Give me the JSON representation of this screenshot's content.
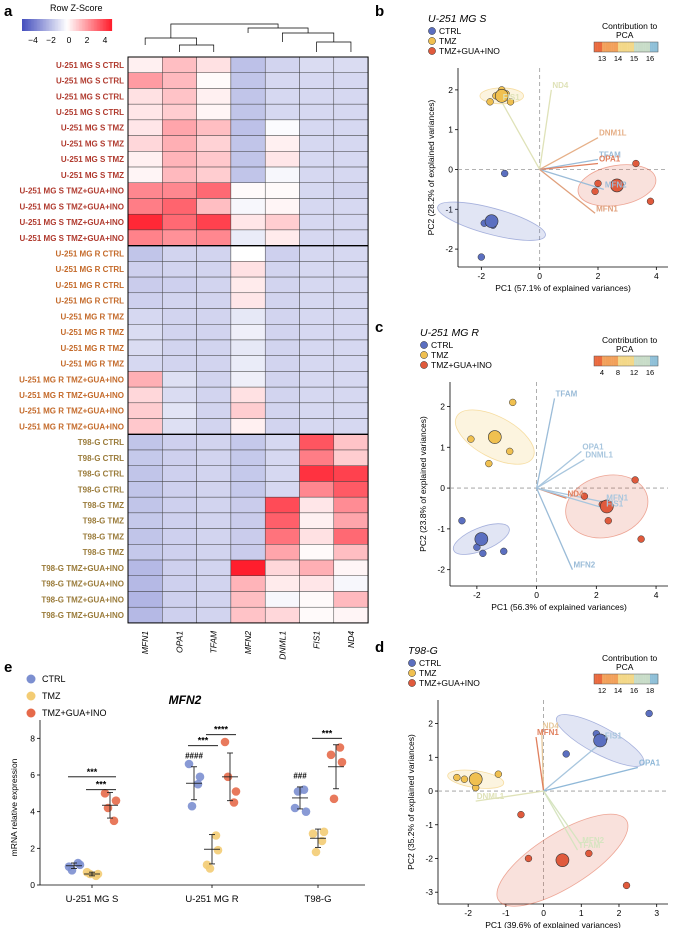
{
  "panels": {
    "a": "a",
    "b": "b",
    "c": "c",
    "d": "d",
    "e": "e"
  },
  "chart_data": [
    {
      "type": "heatmap",
      "panel": "a",
      "legend_title": "Row Z-Score",
      "legend_ticks": [
        "−4",
        "−2",
        "0",
        "2",
        "4"
      ],
      "columns": [
        "MFN1",
        "OPA1",
        "TFAM",
        "MFN2",
        "DNML1",
        "FIS1",
        "ND4"
      ],
      "rows": [
        "U-251 MG S CTRL",
        "U-251 MG S CTRL",
        "U-251 MG S CTRL",
        "U-251 MG S CTRL",
        "U-251 MG S TMZ",
        "U-251 MG S TMZ",
        "U-251 MG S TMZ",
        "U-251 MG S TMZ",
        "U-251 MG S TMZ+GUA+INO",
        "U-251 MG S TMZ+GUA+INO",
        "U-251 MG S TMZ+GUA+INO",
        "U-251 MG S TMZ+GUA+INO",
        "U-251 MG R CTRL",
        "U-251 MG R CTRL",
        "U-251 MG R CTRL",
        "U-251 MG R CTRL",
        "U-251 MG R TMZ",
        "U-251 MG R TMZ",
        "U-251 MG R TMZ",
        "U-251 MG R TMZ",
        "U-251 MG R TMZ+GUA+INO",
        "U-251 MG R TMZ+GUA+INO",
        "U-251 MG R TMZ+GUA+INO",
        "U-251 MG R TMZ+GUA+INO",
        "T98-G CTRL",
        "T98-G CTRL",
        "T98-G CTRL",
        "T98-G CTRL",
        "T98-G TMZ",
        "T98-G TMZ",
        "T98-G TMZ",
        "T98-G TMZ",
        "T98-G TMZ+GUA+INO",
        "T98-G TMZ+GUA+INO",
        "T98-G TMZ+GUA+INO",
        "T98-G TMZ+GUA+INO"
      ],
      "row_colors": [
        "#b03a2e",
        "#c46a2a",
        "#9a7b3a"
      ],
      "values": [
        [
          0.3,
          1.3,
          0.6,
          -1.6,
          -1.1,
          -0.9,
          -0.9
        ],
        [
          2.0,
          1.4,
          0.1,
          -1.5,
          -1.0,
          -1.0,
          -1.0
        ],
        [
          0.6,
          1.2,
          0.3,
          -1.5,
          -1.0,
          -1.0,
          -1.0
        ],
        [
          0.5,
          1.0,
          0.2,
          -1.5,
          -1.0,
          -1.0,
          -1.0
        ],
        [
          0.5,
          1.8,
          1.3,
          -1.6,
          -0.1,
          -1.0,
          -1.0
        ],
        [
          0.8,
          1.6,
          0.9,
          -1.5,
          0.3,
          -1.0,
          -1.0
        ],
        [
          0.3,
          1.5,
          1.1,
          -1.5,
          0.5,
          -1.0,
          -1.0
        ],
        [
          0.2,
          1.4,
          1.0,
          -1.5,
          -0.2,
          -1.0,
          -1.0
        ],
        [
          2.4,
          2.4,
          3.0,
          0.1,
          0.1,
          -1.0,
          -1.1
        ],
        [
          2.6,
          3.1,
          1.3,
          -0.2,
          0.2,
          -1.0,
          -1.0
        ],
        [
          4.3,
          3.0,
          3.8,
          0.5,
          1.0,
          -1.0,
          -1.0
        ],
        [
          2.5,
          2.2,
          2.4,
          -0.5,
          0.4,
          -1.0,
          -1.0
        ],
        [
          -1.5,
          -1.1,
          -1.1,
          0.0,
          -1.2,
          -1.0,
          -1.0
        ],
        [
          -1.2,
          -1.1,
          -1.1,
          0.6,
          -1.1,
          -1.0,
          -1.0
        ],
        [
          -1.3,
          -1.2,
          -1.1,
          0.4,
          -1.1,
          -1.0,
          -1.0
        ],
        [
          -1.2,
          -1.1,
          -1.1,
          0.5,
          -1.1,
          -1.0,
          -1.0
        ],
        [
          -1.0,
          -1.1,
          -1.1,
          -0.6,
          -1.1,
          -1.0,
          -1.0
        ],
        [
          -0.9,
          -1.1,
          -1.1,
          -0.4,
          -1.1,
          -1.0,
          -1.0
        ],
        [
          -0.9,
          -1.1,
          -1.1,
          -0.6,
          -1.1,
          -1.0,
          -1.0
        ],
        [
          -1.0,
          -1.1,
          -1.1,
          -0.5,
          -1.1,
          -1.0,
          -1.0
        ],
        [
          1.6,
          -0.8,
          -1.1,
          -0.4,
          -1.1,
          -1.0,
          -1.0
        ],
        [
          0.8,
          -0.9,
          -1.1,
          0.6,
          -1.1,
          -1.0,
          -1.0
        ],
        [
          1.0,
          -0.7,
          -1.1,
          1.0,
          -1.1,
          -1.0,
          -1.0
        ],
        [
          1.1,
          -0.8,
          -1.1,
          0.3,
          -1.1,
          -1.0,
          -1.0
        ],
        [
          -1.5,
          -1.2,
          -1.1,
          -1.4,
          -1.0,
          3.4,
          1.2
        ],
        [
          -1.4,
          -1.2,
          -1.1,
          -1.4,
          -1.0,
          2.6,
          1.0
        ],
        [
          -1.5,
          -1.2,
          -1.1,
          -1.4,
          -1.0,
          4.1,
          3.8
        ],
        [
          -1.5,
          -1.2,
          -1.1,
          -1.4,
          -1.0,
          2.4,
          3.3
        ],
        [
          -1.5,
          -1.2,
          -1.1,
          -1.3,
          3.6,
          0.5,
          2.3
        ],
        [
          -1.4,
          -1.2,
          -1.1,
          -1.3,
          3.2,
          0.3,
          1.8
        ],
        [
          -1.5,
          -1.2,
          -1.1,
          -1.3,
          2.8,
          0.6,
          3.0
        ],
        [
          -1.4,
          -1.2,
          -1.1,
          -1.3,
          1.8,
          0.1,
          1.3
        ],
        [
          -1.8,
          -1.2,
          -1.1,
          4.6,
          0.8,
          1.6,
          0.2
        ],
        [
          -1.8,
          -1.2,
          -1.1,
          1.5,
          0.4,
          0.5,
          -0.2
        ],
        [
          -1.9,
          -1.2,
          -1.1,
          1.3,
          -0.2,
          0.1,
          1.4
        ],
        [
          -1.8,
          -1.2,
          -1.1,
          1.2,
          0.8,
          0.1,
          0.2
        ]
      ]
    },
    {
      "type": "scatter",
      "panel": "b",
      "title": "U-251 MG S",
      "xlabel": "PC1 (57.1% of explained variances)",
      "ylabel": "PC2 (28.2% of explained variances)",
      "xlim": [
        -2.8,
        4.4
      ],
      "ylim": [
        -2.45,
        2.55
      ],
      "xticks": [
        -2,
        0,
        2,
        4
      ],
      "yticks": [
        -2,
        -1,
        0,
        1,
        2
      ],
      "legend": [
        "CTRL",
        "TMZ",
        "TMZ+GUA+INO"
      ],
      "colorbar": {
        "title": "Contribution to PCA",
        "ticks": [
          "13",
          "14",
          "15",
          "16"
        ]
      },
      "groups": [
        {
          "name": "CTRL",
          "color": "#5b6fc0",
          "points": [
            [
              -1.2,
              -0.1
            ],
            [
              -1.6,
              -1.4
            ],
            [
              -1.9,
              -1.35
            ],
            [
              -2.0,
              -2.2
            ]
          ],
          "centroid": [
            -1.65,
            -1.3
          ],
          "ellipse": {
            "rx": 0.45,
            "ry": 1.4,
            "angle": -75
          }
        },
        {
          "name": "TMZ",
          "color": "#f0c050",
          "points": [
            [
              -1.5,
              1.85
            ],
            [
              -1.15,
              1.9
            ],
            [
              -1.0,
              1.7
            ],
            [
              -1.7,
              1.7
            ],
            [
              -1.3,
              2.0
            ]
          ],
          "centroid": [
            -1.3,
            1.85
          ],
          "ellipse": {
            "rx": 0.75,
            "ry": 0.2,
            "angle": 0
          }
        },
        {
          "name": "TMZ+GUA+INO",
          "color": "#e05a3c",
          "points": [
            [
              1.9,
              -0.55
            ],
            [
              3.3,
              0.15
            ],
            [
              3.8,
              -0.8
            ],
            [
              2.0,
              -0.35
            ],
            [
              2.6,
              -0.4
            ]
          ],
          "centroid": [
            2.65,
            -0.4
          ],
          "ellipse": {
            "rx": 1.35,
            "ry": 0.5,
            "angle": -10
          }
        }
      ],
      "loadings": [
        {
          "name": "ND4",
          "x": 0.4,
          "y": 2.0,
          "color": "#dfe2b8"
        },
        {
          "name": "FIS1",
          "x": -1.3,
          "y": 1.7,
          "color": "#dfe2b8"
        },
        {
          "name": "DNM1L",
          "x": 2.0,
          "y": 0.8,
          "color": "#e6b088"
        },
        {
          "name": "TFAM",
          "x": 2.0,
          "y": 0.25,
          "color": "#9bbcd8"
        },
        {
          "name": "OPA1",
          "x": 2.0,
          "y": 0.15,
          "color": "#e07f5d"
        },
        {
          "name": "MFN2",
          "x": 2.2,
          "y": -0.5,
          "color": "#9bbcd8"
        },
        {
          "name": "MFN1",
          "x": 1.9,
          "y": -1.1,
          "color": "#e0a07c"
        }
      ]
    },
    {
      "type": "scatter",
      "panel": "c",
      "title": "U-251 MG R",
      "xlabel": "PC1 (56.3% of explained variances)",
      "ylabel": "PC2 (23.8% of explained variances)",
      "xlim": [
        -2.9,
        4.4
      ],
      "ylim": [
        -2.4,
        2.6
      ],
      "xticks": [
        -2,
        0,
        2,
        4
      ],
      "yticks": [
        -2,
        -1,
        0,
        1,
        2
      ],
      "legend": [
        "CTRL",
        "TMZ",
        "TMZ+GUA+INO"
      ],
      "colorbar": {
        "title": "Contribution to PCA",
        "ticks": [
          "4",
          "8",
          "12",
          "16"
        ]
      },
      "groups": [
        {
          "name": "CTRL",
          "color": "#5b6fc0",
          "points": [
            [
              -2.5,
              -0.8
            ],
            [
              -2.0,
              -1.45
            ],
            [
              -1.1,
              -1.55
            ],
            [
              -1.8,
              -1.6
            ]
          ],
          "centroid": [
            -1.85,
            -1.25
          ],
          "ellipse": {
            "rx": 1.0,
            "ry": 0.28,
            "angle": -22
          }
        },
        {
          "name": "TMZ",
          "color": "#f0c050",
          "points": [
            [
              -2.2,
              1.2
            ],
            [
              -0.8,
              2.1
            ],
            [
              -1.6,
              0.6
            ],
            [
              -0.9,
              0.9
            ]
          ],
          "centroid": [
            -1.4,
            1.25
          ],
          "ellipse": {
            "rx": 1.45,
            "ry": 0.5,
            "angle": 28
          }
        },
        {
          "name": "TMZ+GUA+INO",
          "color": "#e05a3c",
          "points": [
            [
              1.6,
              -0.2
            ],
            [
              3.3,
              0.2
            ],
            [
              2.4,
              -0.8
            ],
            [
              3.5,
              -1.25
            ],
            [
              2.2,
              -0.4
            ]
          ],
          "centroid": [
            2.35,
            -0.45
          ],
          "ellipse": {
            "rx": 1.4,
            "ry": 0.75,
            "angle": -15
          }
        }
      ],
      "loadings": [
        {
          "name": "TFAM",
          "x": 0.6,
          "y": 2.2,
          "color": "#9bbcd8"
        },
        {
          "name": "OPA1",
          "x": 1.5,
          "y": 0.9,
          "color": "#a8c6de"
        },
        {
          "name": "DNML1",
          "x": 1.6,
          "y": 0.7,
          "color": "#a8c6de"
        },
        {
          "name": "ND4",
          "x": 1.0,
          "y": -0.25,
          "color": "#e07f5d"
        },
        {
          "name": "MFN1",
          "x": 2.3,
          "y": -0.35,
          "color": "#a8c6de"
        },
        {
          "name": "FIS1",
          "x": 2.3,
          "y": -0.5,
          "color": "#a8c6de"
        },
        {
          "name": "MFN2",
          "x": 1.2,
          "y": -2.0,
          "color": "#9bbcd8"
        }
      ]
    },
    {
      "type": "scatter",
      "panel": "d",
      "title": "T98-G",
      "xlabel": "PC1 (39.6% of explained variances)",
      "ylabel": "PC2 (35.2% of explained variances)",
      "xlim": [
        -2.8,
        3.3
      ],
      "ylim": [
        -3.35,
        2.7
      ],
      "xticks": [
        -2,
        -1,
        0,
        1,
        2,
        3
      ],
      "yticks": [
        -3,
        -2,
        -1,
        0,
        1,
        2
      ],
      "legend": [
        "CTRL",
        "TMZ",
        "TMZ+GUA+INO"
      ],
      "colorbar": {
        "title": "Contribution to PCA",
        "ticks": [
          "12",
          "14",
          "16",
          "18"
        ]
      },
      "groups": [
        {
          "name": "CTRL",
          "color": "#5b6fc0",
          "points": [
            [
              0.6,
              1.1
            ],
            [
              1.6,
              1.55
            ],
            [
              2.8,
              2.3
            ],
            [
              1.4,
              1.7
            ]
          ],
          "centroid": [
            1.5,
            1.5
          ],
          "ellipse": {
            "rx": 1.3,
            "ry": 0.4,
            "angle": 28
          }
        },
        {
          "name": "TMZ",
          "color": "#f0c050",
          "points": [
            [
              -2.1,
              0.35
            ],
            [
              -1.2,
              0.5
            ],
            [
              -1.8,
              0.1
            ],
            [
              -2.3,
              0.4
            ]
          ],
          "centroid": [
            -1.8,
            0.35
          ],
          "ellipse": {
            "rx": 0.75,
            "ry": 0.25,
            "angle": 8
          }
        },
        {
          "name": "TMZ+GUA+INO",
          "color": "#e05a3c",
          "points": [
            [
              -0.6,
              -0.7
            ],
            [
              -0.4,
              -2.0
            ],
            [
              1.2,
              -1.85
            ],
            [
              2.2,
              -2.8
            ],
            [
              0.5,
              -2.05
            ]
          ],
          "centroid": [
            0.5,
            -2.05
          ],
          "ellipse": {
            "rx": 2.0,
            "ry": 0.8,
            "angle": -32
          }
        }
      ],
      "loadings": [
        {
          "name": "ND4",
          "x": -0.05,
          "y": 1.8,
          "color": "#e6c79a"
        },
        {
          "name": "MFN1",
          "x": -0.2,
          "y": 1.6,
          "color": "#e07f5d"
        },
        {
          "name": "FIS1",
          "x": 1.6,
          "y": 1.5,
          "color": "#a8c6de"
        },
        {
          "name": "OPA1",
          "x": 2.5,
          "y": 0.7,
          "color": "#8fb8d8"
        },
        {
          "name": "DNML1",
          "x": -1.8,
          "y": -0.3,
          "color": "#dfe2b8"
        },
        {
          "name": "MFN2",
          "x": 1.0,
          "y": -1.6,
          "color": "#d6e4c0"
        },
        {
          "name": "TFAM",
          "x": 0.9,
          "y": -1.75,
          "color": "#d6e4c0"
        }
      ]
    },
    {
      "type": "scatter",
      "panel": "e",
      "title": "MFN2",
      "ylabel": "mRNA relative expression",
      "ylim": [
        0,
        9
      ],
      "yticks": [
        0,
        2,
        4,
        6,
        8
      ],
      "categories": [
        "U-251 MG S",
        "U-251 MG R",
        "T98-G"
      ],
      "legend": [
        "CTRL",
        "TMZ",
        "TMZ+GUA+INO"
      ],
      "series": [
        {
          "name": "CTRL",
          "color": "#7c8fd0",
          "points": [
            [
              1.0,
              1.2,
              0.8,
              1.1
            ],
            [
              6.6,
              5.5,
              4.3,
              5.9
            ],
            [
              4.2,
              5.2,
              5.1,
              4.0
            ]
          ],
          "mean": [
            1.05,
            5.55,
            4.75
          ],
          "sd": [
            0.15,
            0.9,
            0.6
          ]
        },
        {
          "name": "TMZ",
          "color": "#f3cc74",
          "points": [
            [
              0.7,
              0.5,
              0.6,
              0.6
            ],
            [
              1.1,
              2.7,
              0.9,
              1.9
            ],
            [
              2.8,
              2.4,
              1.8,
              2.9
            ]
          ],
          "mean": [
            0.6,
            1.95,
            2.55
          ],
          "sd": [
            0.1,
            0.8,
            0.5
          ]
        },
        {
          "name": "TMZ+GUA+INO",
          "color": "#e66a4a",
          "points": [
            [
              5.0,
              3.5,
              4.2,
              4.6
            ],
            [
              7.8,
              4.5,
              5.9,
              5.1
            ],
            [
              7.1,
              7.5,
              4.7,
              6.7
            ]
          ],
          "mean": [
            4.35,
            5.9,
            6.45
          ],
          "sd": [
            0.7,
            1.3,
            1.2
          ]
        }
      ],
      "annotations": [
        {
          "group": 0,
          "text": "***",
          "from": 0,
          "to": 2,
          "y": 5.9
        },
        {
          "group": 0,
          "text": "***",
          "from": 1,
          "to": 2,
          "y": 5.2
        },
        {
          "group": 1,
          "text": "***",
          "from": 0,
          "to": 1,
          "y": 7.6
        },
        {
          "group": 1,
          "text": "****",
          "from": 1,
          "to": 2,
          "y": 8.2
        },
        {
          "group": 1,
          "text": "####",
          "series": 0,
          "y": 6.9
        },
        {
          "group": 2,
          "text": "***",
          "from": 1,
          "to": 2,
          "y": 8.0
        },
        {
          "group": 2,
          "text": "###",
          "series": 0,
          "y": 5.8
        }
      ]
    }
  ]
}
